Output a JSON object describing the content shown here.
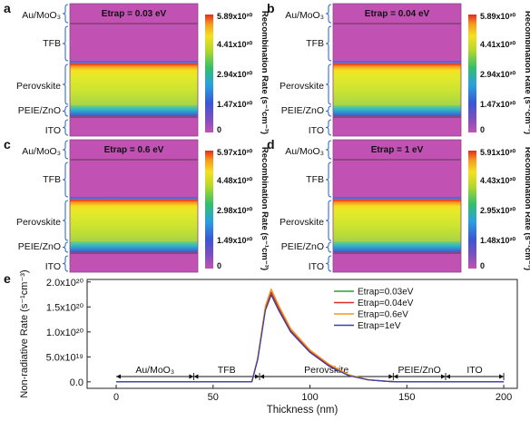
{
  "panels": [
    {
      "letter": "a",
      "etrap": "Etrap = 0.03 eV",
      "ticks": [
        "5.89x10²⁰",
        "4.41x10²⁰",
        "2.94x10²⁰",
        "1.47x10²⁰",
        "0"
      ]
    },
    {
      "letter": "b",
      "etrap": "Etrap = 0.04 eV",
      "ticks": [
        "5.89x10²⁰",
        "4.41x10²⁰",
        "2.94x10²⁰",
        "1.47x10²⁰",
        "0"
      ]
    },
    {
      "letter": "c",
      "etrap": "Etrap = 0.6 eV",
      "ticks": [
        "5.97x10²⁰",
        "4.48x10²⁰",
        "2.98x10²⁰",
        "1.49x10²⁰",
        "0"
      ]
    },
    {
      "letter": "d",
      "etrap": "Etrap = 1 eV",
      "ticks": [
        "5.91x10²⁰",
        "4.43x10²⁰",
        "2.95x10²⁰",
        "1.48x10²⁰",
        "0"
      ]
    }
  ],
  "layers": [
    "Au/MoO₃",
    "TFB",
    "Perovskite",
    "PEIE/ZnO",
    "ITO"
  ],
  "colorbar_label": "Recombination Rate (s⁻¹cm⁻³)",
  "colors": {
    "background_layer": "#c152b4",
    "frame": "#3a5fb0"
  },
  "chart_data": {
    "type": "line",
    "panel_letter": "e",
    "xlabel": "Thickness (nm)",
    "ylabel": "Non-radiative Rate (s⁻¹cm⁻³)",
    "xlim": [
      -15,
      207
    ],
    "ylim": [
      -1.3e+19,
      2.05e+20
    ],
    "xticks": [
      0,
      50,
      100,
      150,
      200
    ],
    "xtick_labels": [
      "0",
      "50",
      "100",
      "150",
      "200"
    ],
    "yticks": [
      0,
      5e+19,
      1e+20,
      1.5e+20,
      2e+20
    ],
    "ytick_labels": [
      "0.0",
      "5.0x10¹⁹",
      "1.0x10²⁰",
      "1.5x10²⁰",
      "2.0x10²⁰"
    ],
    "legend_position": "top-right",
    "x": [
      0,
      40,
      70,
      73,
      77,
      80,
      84,
      90,
      100,
      110,
      120,
      130,
      140,
      145,
      170,
      200
    ],
    "series": [
      {
        "name": "Etrap=0.03eV",
        "color": "#2a9d3a",
        "values": [
          0,
          0,
          0,
          4.5e+19,
          1.45e+20,
          1.77e+20,
          1.45e+20,
          1.02e+20,
          6e+19,
          3.2e+19,
          1.3e+19,
          4e+18,
          1e+18,
          0,
          0,
          0
        ]
      },
      {
        "name": "Etrap=0.04eV",
        "color": "#d33027",
        "values": [
          0,
          0,
          0,
          4.6e+19,
          1.47e+20,
          1.8e+20,
          1.47e+20,
          1.03e+20,
          6.1e+19,
          3.3e+19,
          1.35e+19,
          4e+18,
          1e+18,
          0,
          0,
          0
        ]
      },
      {
        "name": "Etrap=0.6eV",
        "color": "#f29a1f",
        "values": [
          0,
          0,
          0,
          4.8e+19,
          1.52e+20,
          1.86e+20,
          1.52e+20,
          1.07e+20,
          6.4e+19,
          3.5e+19,
          1.45e+19,
          4.5e+18,
          1e+18,
          0,
          0,
          0
        ]
      },
      {
        "name": "Etrap=1eV",
        "color": "#3d3fa8",
        "values": [
          0,
          0,
          0,
          4.4e+19,
          1.43e+20,
          1.74e+20,
          1.42e+20,
          1e+20,
          5.9e+19,
          3.1e+19,
          1.25e+19,
          4e+18,
          1e+18,
          0,
          0,
          0
        ]
      }
    ],
    "regions": [
      {
        "label": "Au/MoO₃",
        "from": 0,
        "to": 40
      },
      {
        "label": "TFB",
        "from": 40,
        "to": 74
      },
      {
        "label": "Perovskite",
        "from": 74,
        "to": 143
      },
      {
        "label": "PEIE/ZnO",
        "from": 143,
        "to": 170
      },
      {
        "label": "ITO",
        "from": 170,
        "to": 200
      }
    ]
  }
}
